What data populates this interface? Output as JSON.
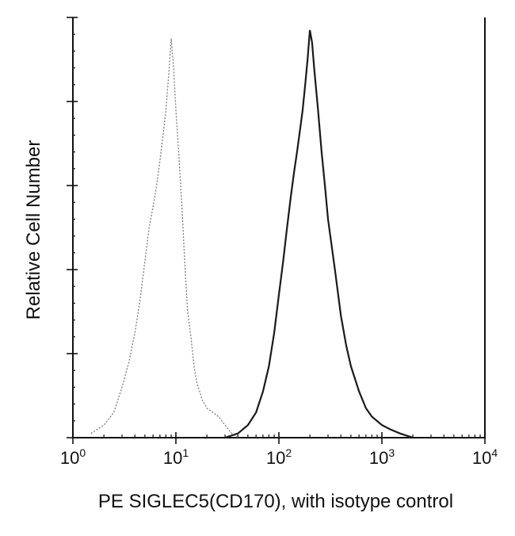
{
  "chart_data": {
    "type": "line",
    "title": "",
    "xlabel": "PE SIGLEC5(CD170), with isotype control",
    "ylabel": "Relative Cell Number",
    "x_scale": "log",
    "xlim": [
      1,
      10000
    ],
    "ylim": [
      0,
      100
    ],
    "x_ticks": [
      {
        "base": "10",
        "exp": "0",
        "value": 1
      },
      {
        "base": "10",
        "exp": "1",
        "value": 10
      },
      {
        "base": "10",
        "exp": "2",
        "value": 100
      },
      {
        "base": "10",
        "exp": "3",
        "value": 1000
      },
      {
        "base": "10",
        "exp": "4",
        "value": 10000
      }
    ],
    "y_major_ticks": [
      0,
      20,
      40,
      60,
      80,
      100
    ],
    "grid": false,
    "legend": "none",
    "series": [
      {
        "color": "#7a7a7a",
        "style": "dotted",
        "x": [
          1.5,
          2.0,
          2.5,
          3.0,
          3.5,
          4.0,
          4.5,
          5.0,
          5.5,
          6.0,
          6.5,
          7.0,
          7.5,
          8.0,
          8.5,
          9.0,
          9.5,
          10.0,
          10.5,
          11.0,
          11.5,
          12.0,
          12.5,
          13.0,
          14.0,
          15.0,
          16.0,
          17.0,
          18.0,
          20.0,
          23.0,
          26.0,
          30.0,
          35.0,
          40.0
        ],
        "y": [
          1,
          3,
          6,
          12,
          18,
          25,
          33,
          42,
          50,
          55,
          60,
          66,
          72,
          78,
          86,
          95,
          88,
          78,
          70,
          62,
          54,
          45,
          37,
          30,
          24,
          17,
          13,
          11,
          9,
          7,
          6,
          5,
          3,
          1,
          0
        ]
      },
      {
        "color": "#1a1a1a",
        "style": "solid",
        "x": [
          30,
          40,
          50,
          60,
          70,
          80,
          90,
          100,
          110,
          120,
          130,
          140,
          150,
          160,
          170,
          180,
          190,
          200,
          210,
          220,
          240,
          260,
          280,
          300,
          350,
          400,
          450,
          500,
          600,
          700,
          800,
          1000,
          1200,
          1500,
          2000
        ],
        "y": [
          0,
          1,
          3,
          6,
          11,
          17,
          25,
          34,
          42,
          50,
          57,
          63,
          68,
          73,
          78,
          84,
          90,
          97,
          94,
          88,
          78,
          68,
          60,
          52,
          40,
          29,
          22,
          17,
          11,
          7,
          5,
          3,
          2,
          1,
          0
        ]
      }
    ]
  }
}
